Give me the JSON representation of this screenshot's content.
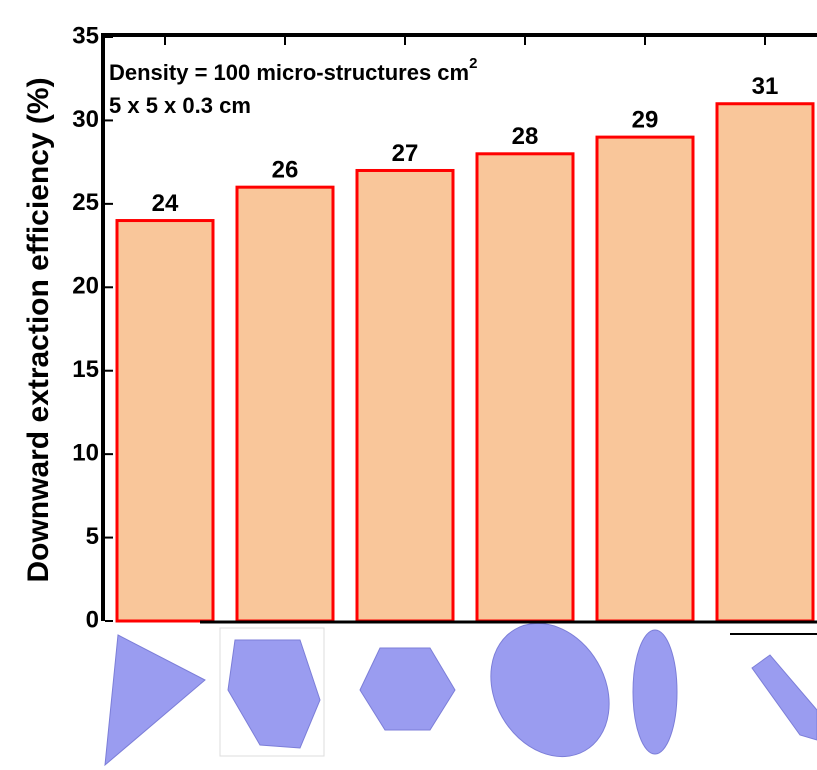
{
  "chart_data": {
    "type": "bar",
    "ylabel": "Downward extraction efficiency (%)",
    "annotations": [
      "Density =  100 micro-structures cm",
      "2",
      "5 x 5 x 0.3 cm"
    ],
    "categories": [
      null,
      null,
      null,
      null,
      null,
      null
    ],
    "values": [
      24,
      26,
      27,
      28,
      29,
      31
    ],
    "color": "#f9c69a",
    "edgecolor": "#ff0000",
    "ylim": [
      0,
      35
    ],
    "yticks": [
      0,
      5,
      10,
      15,
      20,
      25,
      30,
      35
    ],
    "grid": false
  }
}
